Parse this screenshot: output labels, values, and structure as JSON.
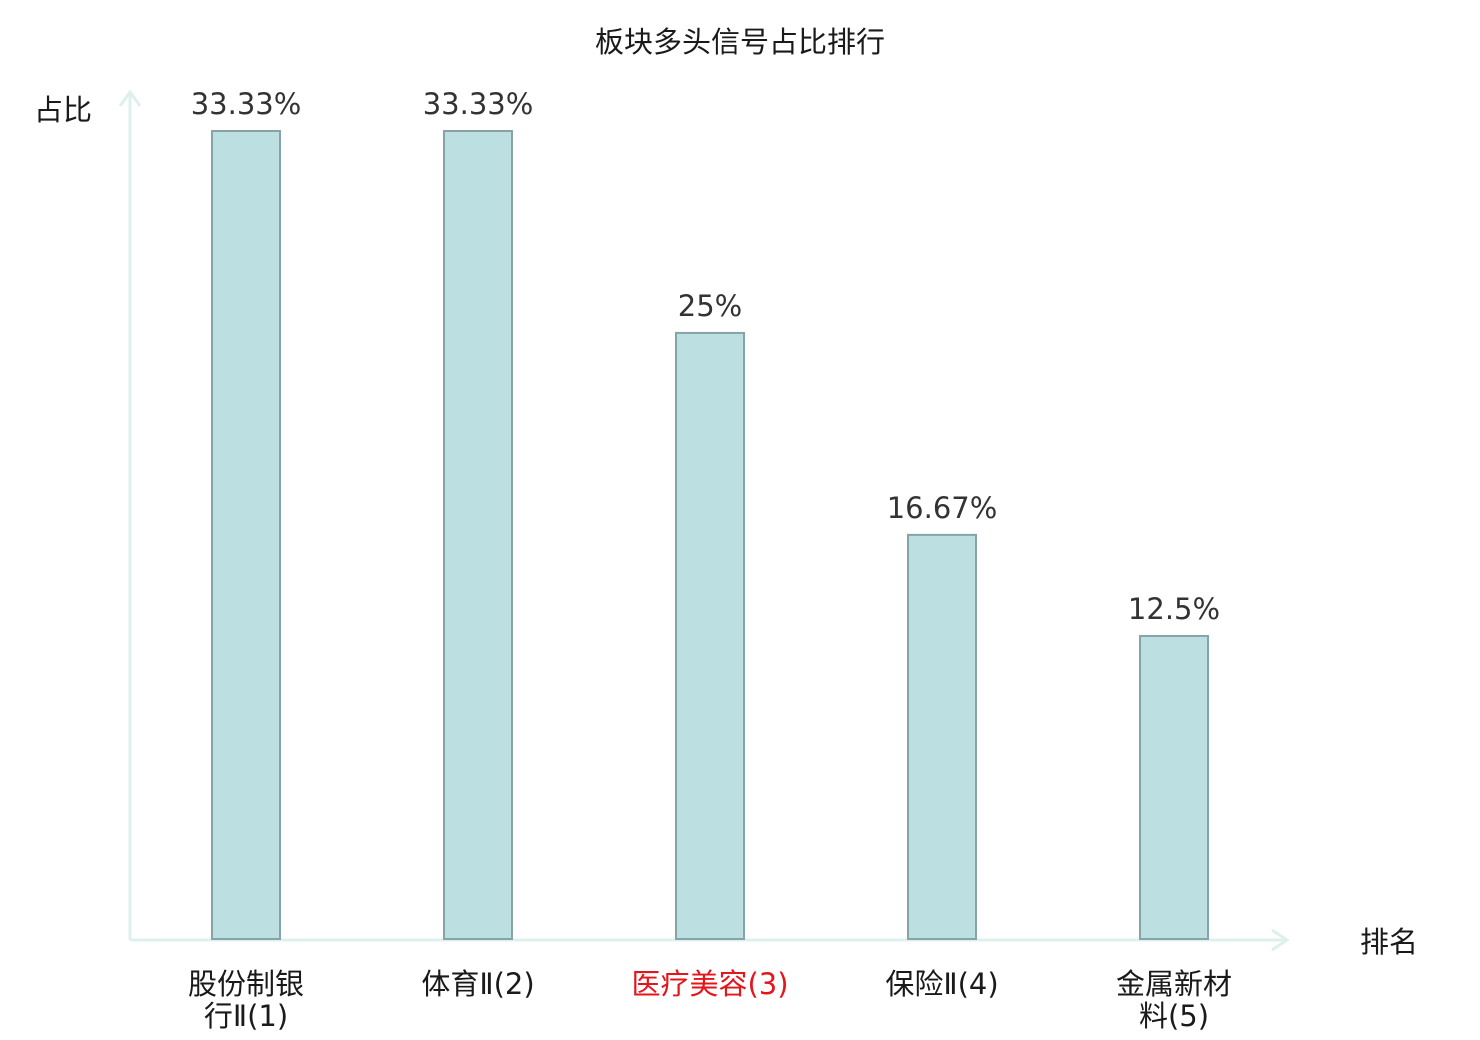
{
  "chart_data": {
    "type": "bar",
    "title": "板块多头信号占比排行",
    "xlabel": "排名",
    "ylabel": "占比",
    "ylim": [
      0,
      33.33
    ],
    "grid": false,
    "categories": [
      {
        "line1": "股份制银",
        "line2": "行Ⅱ(1)",
        "highlight": false
      },
      {
        "line1": "体育Ⅱ(2)",
        "line2": "",
        "highlight": false
      },
      {
        "line1": "医疗美容(3)",
        "line2": "",
        "highlight": true
      },
      {
        "line1": "保险Ⅱ(4)",
        "line2": "",
        "highlight": false
      },
      {
        "line1": "金属新材",
        "line2": "料(5)",
        "highlight": false
      }
    ],
    "values": [
      33.33,
      33.33,
      25,
      16.67,
      12.5
    ],
    "value_labels": [
      "33.33%",
      "33.33%",
      "25%",
      "16.67%",
      "12.5%"
    ],
    "colors": {
      "bar_fill": "#bce0e1",
      "bar_stroke": "#86a3a5",
      "axis": "#ddf0ee",
      "text": "#1a1a1a",
      "value_text": "#333333",
      "highlight_text": "#e5151b"
    }
  }
}
